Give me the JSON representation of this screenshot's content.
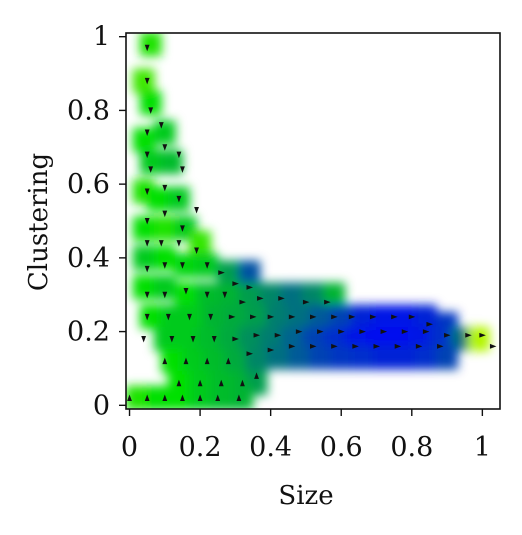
{
  "chart_data": {
    "type": "heatmap",
    "title": "",
    "xlabel": "Size",
    "ylabel": "Clustering",
    "xlim": [
      -0.01,
      1.05
    ],
    "ylim": [
      -0.01,
      1.01
    ],
    "xticks": [
      0,
      0.2,
      0.4,
      0.6,
      0.8,
      1
    ],
    "xtick_labels": [
      "0",
      "0.2",
      "0.4",
      "0.6",
      "0.8",
      "1"
    ],
    "yticks": [
      0,
      0.2,
      0.4,
      0.6,
      0.8,
      1
    ],
    "ytick_labels": [
      "0",
      "0.2",
      "0.4",
      "0.6",
      "0.8",
      "1"
    ],
    "grid": false,
    "legend": "none",
    "colors": {
      "low": "#0000ff",
      "mid": "#00e000",
      "high": "#ffff00",
      "arrow": "#111111"
    },
    "cells": [
      {
        "x": 0.06,
        "y": 0.98,
        "value": 0.55
      },
      {
        "x": 0.04,
        "y": 0.88,
        "value": 0.62
      },
      {
        "x": 0.06,
        "y": 0.82,
        "value": 0.5
      },
      {
        "x": 0.1,
        "y": 0.74,
        "value": 0.45
      },
      {
        "x": 0.04,
        "y": 0.72,
        "value": 0.5
      },
      {
        "x": 0.06,
        "y": 0.66,
        "value": 0.45
      },
      {
        "x": 0.12,
        "y": 0.66,
        "value": 0.42
      },
      {
        "x": 0.04,
        "y": 0.58,
        "value": 0.55
      },
      {
        "x": 0.08,
        "y": 0.56,
        "value": 0.5
      },
      {
        "x": 0.14,
        "y": 0.56,
        "value": 0.45
      },
      {
        "x": 0.04,
        "y": 0.48,
        "value": 0.5
      },
      {
        "x": 0.1,
        "y": 0.48,
        "value": 0.55
      },
      {
        "x": 0.16,
        "y": 0.48,
        "value": 0.45
      },
      {
        "x": 0.2,
        "y": 0.44,
        "value": 0.6
      },
      {
        "x": 0.04,
        "y": 0.4,
        "value": 0.45
      },
      {
        "x": 0.1,
        "y": 0.4,
        "value": 0.5
      },
      {
        "x": 0.16,
        "y": 0.38,
        "value": 0.48
      },
      {
        "x": 0.22,
        "y": 0.38,
        "value": 0.45
      },
      {
        "x": 0.28,
        "y": 0.36,
        "value": 0.35
      },
      {
        "x": 0.34,
        "y": 0.36,
        "value": 0.18
      },
      {
        "x": 0.04,
        "y": 0.32,
        "value": 0.5
      },
      {
        "x": 0.1,
        "y": 0.32,
        "value": 0.45
      },
      {
        "x": 0.16,
        "y": 0.3,
        "value": 0.5
      },
      {
        "x": 0.22,
        "y": 0.3,
        "value": 0.42
      },
      {
        "x": 0.28,
        "y": 0.3,
        "value": 0.4
      },
      {
        "x": 0.34,
        "y": 0.3,
        "value": 0.35
      },
      {
        "x": 0.4,
        "y": 0.3,
        "value": 0.3
      },
      {
        "x": 0.46,
        "y": 0.3,
        "value": 0.25
      },
      {
        "x": 0.52,
        "y": 0.3,
        "value": 0.3
      },
      {
        "x": 0.58,
        "y": 0.3,
        "value": 0.4
      },
      {
        "x": 0.06,
        "y": 0.24,
        "value": 0.5
      },
      {
        "x": 0.12,
        "y": 0.24,
        "value": 0.45
      },
      {
        "x": 0.18,
        "y": 0.24,
        "value": 0.45
      },
      {
        "x": 0.24,
        "y": 0.24,
        "value": 0.4
      },
      {
        "x": 0.3,
        "y": 0.24,
        "value": 0.38
      },
      {
        "x": 0.36,
        "y": 0.24,
        "value": 0.35
      },
      {
        "x": 0.42,
        "y": 0.24,
        "value": 0.28
      },
      {
        "x": 0.48,
        "y": 0.24,
        "value": 0.25
      },
      {
        "x": 0.54,
        "y": 0.24,
        "value": 0.2
      },
      {
        "x": 0.6,
        "y": 0.24,
        "value": 0.15
      },
      {
        "x": 0.66,
        "y": 0.24,
        "value": 0.08
      },
      {
        "x": 0.72,
        "y": 0.24,
        "value": 0.05
      },
      {
        "x": 0.78,
        "y": 0.24,
        "value": 0.05
      },
      {
        "x": 0.84,
        "y": 0.24,
        "value": 0.08
      },
      {
        "x": 0.9,
        "y": 0.22,
        "value": 0.12
      },
      {
        "x": 0.1,
        "y": 0.18,
        "value": 0.45
      },
      {
        "x": 0.16,
        "y": 0.18,
        "value": 0.45
      },
      {
        "x": 0.22,
        "y": 0.18,
        "value": 0.42
      },
      {
        "x": 0.28,
        "y": 0.18,
        "value": 0.38
      },
      {
        "x": 0.34,
        "y": 0.18,
        "value": 0.32
      },
      {
        "x": 0.4,
        "y": 0.18,
        "value": 0.28
      },
      {
        "x": 0.46,
        "y": 0.18,
        "value": 0.22
      },
      {
        "x": 0.52,
        "y": 0.18,
        "value": 0.15
      },
      {
        "x": 0.58,
        "y": 0.18,
        "value": 0.1
      },
      {
        "x": 0.64,
        "y": 0.18,
        "value": 0.05
      },
      {
        "x": 0.7,
        "y": 0.18,
        "value": 0.03
      },
      {
        "x": 0.76,
        "y": 0.18,
        "value": 0.03
      },
      {
        "x": 0.82,
        "y": 0.18,
        "value": 0.05
      },
      {
        "x": 0.88,
        "y": 0.18,
        "value": 0.1
      },
      {
        "x": 0.94,
        "y": 0.18,
        "value": 0.25
      },
      {
        "x": 0.99,
        "y": 0.18,
        "value": 0.85
      },
      {
        "x": 0.12,
        "y": 0.12,
        "value": 0.5
      },
      {
        "x": 0.18,
        "y": 0.12,
        "value": 0.45
      },
      {
        "x": 0.24,
        "y": 0.12,
        "value": 0.42
      },
      {
        "x": 0.3,
        "y": 0.12,
        "value": 0.38
      },
      {
        "x": 0.36,
        "y": 0.12,
        "value": 0.3
      },
      {
        "x": 0.42,
        "y": 0.13,
        "value": 0.25
      },
      {
        "x": 0.48,
        "y": 0.13,
        "value": 0.2
      },
      {
        "x": 0.54,
        "y": 0.13,
        "value": 0.15
      },
      {
        "x": 0.6,
        "y": 0.13,
        "value": 0.12
      },
      {
        "x": 0.66,
        "y": 0.13,
        "value": 0.1
      },
      {
        "x": 0.72,
        "y": 0.13,
        "value": 0.08
      },
      {
        "x": 0.78,
        "y": 0.13,
        "value": 0.08
      },
      {
        "x": 0.84,
        "y": 0.13,
        "value": 0.1
      },
      {
        "x": 0.9,
        "y": 0.13,
        "value": 0.15
      },
      {
        "x": 0.14,
        "y": 0.06,
        "value": 0.5
      },
      {
        "x": 0.2,
        "y": 0.06,
        "value": 0.45
      },
      {
        "x": 0.26,
        "y": 0.06,
        "value": 0.42
      },
      {
        "x": 0.32,
        "y": 0.06,
        "value": 0.4
      },
      {
        "x": 0.36,
        "y": 0.06,
        "value": 0.35
      },
      {
        "x": 0.02,
        "y": 0.02,
        "value": 0.55
      },
      {
        "x": 0.08,
        "y": 0.02,
        "value": 0.5
      },
      {
        "x": 0.14,
        "y": 0.02,
        "value": 0.5
      },
      {
        "x": 0.2,
        "y": 0.02,
        "value": 0.45
      },
      {
        "x": 0.26,
        "y": 0.02,
        "value": 0.42
      },
      {
        "x": 0.32,
        "y": 0.02,
        "value": 0.4
      }
    ],
    "arrows": [
      {
        "x": 0.05,
        "y": 0.97,
        "dir": "down"
      },
      {
        "x": 0.05,
        "y": 0.88,
        "dir": "down"
      },
      {
        "x": 0.06,
        "y": 0.8,
        "dir": "down"
      },
      {
        "x": 0.05,
        "y": 0.74,
        "dir": "down"
      },
      {
        "x": 0.09,
        "y": 0.76,
        "dir": "down"
      },
      {
        "x": 0.1,
        "y": 0.7,
        "dir": "down"
      },
      {
        "x": 0.05,
        "y": 0.68,
        "dir": "down"
      },
      {
        "x": 0.06,
        "y": 0.64,
        "dir": "down"
      },
      {
        "x": 0.14,
        "y": 0.68,
        "dir": "down"
      },
      {
        "x": 0.15,
        "y": 0.64,
        "dir": "down"
      },
      {
        "x": 0.05,
        "y": 0.58,
        "dir": "down"
      },
      {
        "x": 0.1,
        "y": 0.59,
        "dir": "down"
      },
      {
        "x": 0.14,
        "y": 0.56,
        "dir": "down"
      },
      {
        "x": 0.05,
        "y": 0.5,
        "dir": "down"
      },
      {
        "x": 0.1,
        "y": 0.52,
        "dir": "down"
      },
      {
        "x": 0.15,
        "y": 0.48,
        "dir": "down"
      },
      {
        "x": 0.19,
        "y": 0.53,
        "dir": "down"
      },
      {
        "x": 0.05,
        "y": 0.44,
        "dir": "down"
      },
      {
        "x": 0.09,
        "y": 0.44,
        "dir": "down"
      },
      {
        "x": 0.14,
        "y": 0.44,
        "dir": "down"
      },
      {
        "x": 0.19,
        "y": 0.42,
        "dir": "down"
      },
      {
        "x": 0.22,
        "y": 0.38,
        "dir": "down"
      },
      {
        "x": 0.05,
        "y": 0.37,
        "dir": "down"
      },
      {
        "x": 0.1,
        "y": 0.38,
        "dir": "down"
      },
      {
        "x": 0.15,
        "y": 0.38,
        "dir": "down"
      },
      {
        "x": 0.26,
        "y": 0.36,
        "dir": "right"
      },
      {
        "x": 0.3,
        "y": 0.33,
        "dir": "right"
      },
      {
        "x": 0.34,
        "y": 0.32,
        "dir": "right"
      },
      {
        "x": 0.05,
        "y": 0.3,
        "dir": "down"
      },
      {
        "x": 0.1,
        "y": 0.3,
        "dir": "down"
      },
      {
        "x": 0.16,
        "y": 0.31,
        "dir": "down"
      },
      {
        "x": 0.22,
        "y": 0.3,
        "dir": "down"
      },
      {
        "x": 0.27,
        "y": 0.3,
        "dir": "down"
      },
      {
        "x": 0.32,
        "y": 0.28,
        "dir": "right"
      },
      {
        "x": 0.37,
        "y": 0.29,
        "dir": "right"
      },
      {
        "x": 0.43,
        "y": 0.29,
        "dir": "right"
      },
      {
        "x": 0.5,
        "y": 0.28,
        "dir": "right"
      },
      {
        "x": 0.56,
        "y": 0.28,
        "dir": "right"
      },
      {
        "x": 0.05,
        "y": 0.24,
        "dir": "down"
      },
      {
        "x": 0.11,
        "y": 0.24,
        "dir": "down"
      },
      {
        "x": 0.17,
        "y": 0.24,
        "dir": "down"
      },
      {
        "x": 0.23,
        "y": 0.24,
        "dir": "down"
      },
      {
        "x": 0.29,
        "y": 0.24,
        "dir": "right"
      },
      {
        "x": 0.35,
        "y": 0.24,
        "dir": "right"
      },
      {
        "x": 0.4,
        "y": 0.24,
        "dir": "right"
      },
      {
        "x": 0.46,
        "y": 0.24,
        "dir": "right"
      },
      {
        "x": 0.52,
        "y": 0.24,
        "dir": "right"
      },
      {
        "x": 0.58,
        "y": 0.24,
        "dir": "right"
      },
      {
        "x": 0.63,
        "y": 0.24,
        "dir": "right"
      },
      {
        "x": 0.69,
        "y": 0.24,
        "dir": "right"
      },
      {
        "x": 0.75,
        "y": 0.24,
        "dir": "right"
      },
      {
        "x": 0.8,
        "y": 0.24,
        "dir": "right"
      },
      {
        "x": 0.85,
        "y": 0.22,
        "dir": "right"
      },
      {
        "x": 0.04,
        "y": 0.18,
        "dir": "down"
      },
      {
        "x": 0.12,
        "y": 0.18,
        "dir": "down"
      },
      {
        "x": 0.18,
        "y": 0.18,
        "dir": "down"
      },
      {
        "x": 0.24,
        "y": 0.18,
        "dir": "down"
      },
      {
        "x": 0.3,
        "y": 0.18,
        "dir": "right"
      },
      {
        "x": 0.36,
        "y": 0.19,
        "dir": "right"
      },
      {
        "x": 0.42,
        "y": 0.19,
        "dir": "right"
      },
      {
        "x": 0.48,
        "y": 0.2,
        "dir": "right"
      },
      {
        "x": 0.54,
        "y": 0.2,
        "dir": "right"
      },
      {
        "x": 0.6,
        "y": 0.2,
        "dir": "right"
      },
      {
        "x": 0.66,
        "y": 0.2,
        "dir": "right"
      },
      {
        "x": 0.72,
        "y": 0.2,
        "dir": "right"
      },
      {
        "x": 0.78,
        "y": 0.2,
        "dir": "right"
      },
      {
        "x": 0.84,
        "y": 0.2,
        "dir": "right"
      },
      {
        "x": 0.9,
        "y": 0.19,
        "dir": "right"
      },
      {
        "x": 0.96,
        "y": 0.19,
        "dir": "right"
      },
      {
        "x": 1.0,
        "y": 0.19,
        "dir": "right"
      },
      {
        "x": 0.1,
        "y": 0.12,
        "dir": "up"
      },
      {
        "x": 0.16,
        "y": 0.12,
        "dir": "up"
      },
      {
        "x": 0.22,
        "y": 0.12,
        "dir": "up"
      },
      {
        "x": 0.28,
        "y": 0.12,
        "dir": "up"
      },
      {
        "x": 0.34,
        "y": 0.14,
        "dir": "right"
      },
      {
        "x": 0.4,
        "y": 0.15,
        "dir": "right"
      },
      {
        "x": 0.46,
        "y": 0.16,
        "dir": "right"
      },
      {
        "x": 0.52,
        "y": 0.16,
        "dir": "right"
      },
      {
        "x": 0.58,
        "y": 0.16,
        "dir": "right"
      },
      {
        "x": 0.64,
        "y": 0.16,
        "dir": "right"
      },
      {
        "x": 0.7,
        "y": 0.16,
        "dir": "right"
      },
      {
        "x": 0.76,
        "y": 0.16,
        "dir": "right"
      },
      {
        "x": 0.82,
        "y": 0.16,
        "dir": "right"
      },
      {
        "x": 0.88,
        "y": 0.16,
        "dir": "right"
      },
      {
        "x": 1.03,
        "y": 0.16,
        "dir": "right"
      },
      {
        "x": 0.14,
        "y": 0.06,
        "dir": "up"
      },
      {
        "x": 0.2,
        "y": 0.06,
        "dir": "up"
      },
      {
        "x": 0.26,
        "y": 0.06,
        "dir": "up"
      },
      {
        "x": 0.32,
        "y": 0.06,
        "dir": "up"
      },
      {
        "x": 0.36,
        "y": 0.08,
        "dir": "up"
      },
      {
        "x": 0.0,
        "y": 0.02,
        "dir": "up"
      },
      {
        "x": 0.05,
        "y": 0.02,
        "dir": "up"
      },
      {
        "x": 0.1,
        "y": 0.02,
        "dir": "up"
      },
      {
        "x": 0.15,
        "y": 0.02,
        "dir": "up"
      },
      {
        "x": 0.2,
        "y": 0.02,
        "dir": "up"
      },
      {
        "x": 0.25,
        "y": 0.02,
        "dir": "up"
      },
      {
        "x": 0.31,
        "y": 0.02,
        "dir": "up"
      }
    ]
  }
}
